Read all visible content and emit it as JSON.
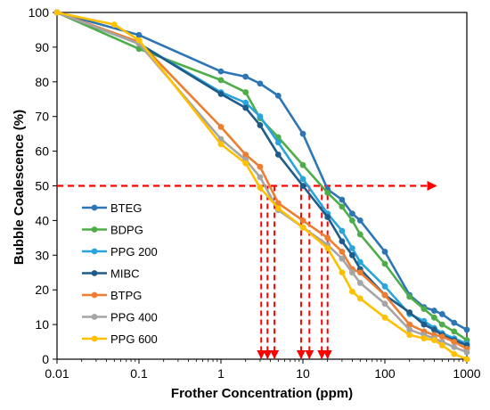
{
  "chart_data": {
    "type": "line",
    "xlabel": "Frother Concentration (ppm)",
    "ylabel": "Bubble Coalescence (%)",
    "x_scale": "log",
    "xlim": [
      0.01,
      1000
    ],
    "ylim": [
      0,
      100
    ],
    "x_ticks": [
      "0.01",
      "0.1",
      "1",
      "10",
      "100",
      "1000"
    ],
    "y_ticks": [
      "0",
      "10",
      "20",
      "30",
      "40",
      "50",
      "60",
      "70",
      "80",
      "90",
      "100"
    ],
    "grid": false,
    "legend_position": "left-center",
    "series": [
      {
        "name": "BTEG",
        "color": "#2e75b6",
        "points": [
          [
            0.01,
            100
          ],
          [
            0.1,
            93.5
          ],
          [
            1,
            83
          ],
          [
            2,
            81.5
          ],
          [
            3,
            79.5
          ],
          [
            5,
            76
          ],
          [
            10,
            65
          ],
          [
            20,
            49
          ],
          [
            30,
            46
          ],
          [
            40,
            42
          ],
          [
            50,
            40
          ],
          [
            100,
            31
          ],
          [
            200,
            18.5
          ],
          [
            300,
            15
          ],
          [
            400,
            14
          ],
          [
            500,
            13
          ],
          [
            700,
            10.5
          ],
          [
            1000,
            8.5
          ]
        ]
      },
      {
        "name": "BDPG",
        "color": "#4ead48",
        "points": [
          [
            0.01,
            100
          ],
          [
            0.1,
            89.5
          ],
          [
            1,
            80.5
          ],
          [
            2,
            77
          ],
          [
            3,
            69.5
          ],
          [
            5,
            64
          ],
          [
            10,
            56
          ],
          [
            20,
            48
          ],
          [
            30,
            44
          ],
          [
            40,
            40
          ],
          [
            50,
            36
          ],
          [
            100,
            27.5
          ],
          [
            200,
            18
          ],
          [
            300,
            14.5
          ],
          [
            400,
            12
          ],
          [
            500,
            10
          ],
          [
            700,
            8
          ],
          [
            1000,
            5.5
          ]
        ]
      },
      {
        "name": "PPG 200",
        "color": "#29a4dd",
        "points": [
          [
            0.01,
            100
          ],
          [
            0.1,
            91
          ],
          [
            1,
            77
          ],
          [
            2,
            74
          ],
          [
            3,
            70
          ],
          [
            5,
            62.5
          ],
          [
            10,
            52
          ],
          [
            20,
            42
          ],
          [
            30,
            37
          ],
          [
            40,
            32
          ],
          [
            50,
            28
          ],
          [
            100,
            21
          ],
          [
            200,
            13
          ],
          [
            300,
            11
          ],
          [
            400,
            9
          ],
          [
            500,
            7.5
          ],
          [
            700,
            6
          ],
          [
            1000,
            4.5
          ]
        ]
      },
      {
        "name": "MIBC",
        "color": "#1f5b89",
        "points": [
          [
            0.01,
            100
          ],
          [
            0.1,
            91
          ],
          [
            1,
            76.5
          ],
          [
            2,
            72.5
          ],
          [
            3,
            67.5
          ],
          [
            5,
            59
          ],
          [
            10,
            50
          ],
          [
            20,
            41
          ],
          [
            30,
            34
          ],
          [
            40,
            30
          ],
          [
            50,
            26
          ],
          [
            100,
            18.5
          ],
          [
            200,
            13.5
          ],
          [
            300,
            10
          ],
          [
            400,
            8.5
          ],
          [
            500,
            7
          ],
          [
            700,
            5.5
          ],
          [
            1000,
            4
          ]
        ]
      },
      {
        "name": "BTPG",
        "color": "#ed7d31",
        "points": [
          [
            0.01,
            100
          ],
          [
            0.1,
            91.5
          ],
          [
            1,
            67
          ],
          [
            2,
            59
          ],
          [
            3,
            55.5
          ],
          [
            5,
            45
          ],
          [
            10,
            40
          ],
          [
            20,
            35
          ],
          [
            30,
            31
          ],
          [
            40,
            26
          ],
          [
            50,
            25
          ],
          [
            100,
            18.5
          ],
          [
            200,
            10
          ],
          [
            300,
            8
          ],
          [
            400,
            7
          ],
          [
            500,
            6.5
          ],
          [
            700,
            5
          ],
          [
            1000,
            3
          ]
        ]
      },
      {
        "name": "PPG 400",
        "color": "#a5a5a5",
        "points": [
          [
            0.01,
            100
          ],
          [
            0.1,
            91
          ],
          [
            1,
            63.5
          ],
          [
            2,
            57.5
          ],
          [
            3,
            52.5
          ],
          [
            5,
            43
          ],
          [
            10,
            38
          ],
          [
            20,
            33
          ],
          [
            30,
            29
          ],
          [
            40,
            25
          ],
          [
            50,
            22
          ],
          [
            100,
            16
          ],
          [
            200,
            8.5
          ],
          [
            300,
            7
          ],
          [
            400,
            6
          ],
          [
            500,
            5
          ],
          [
            700,
            3.5
          ],
          [
            1000,
            2
          ]
        ]
      },
      {
        "name": "PPG 600",
        "color": "#ffc000",
        "points": [
          [
            0.01,
            100
          ],
          [
            0.05,
            96.5
          ],
          [
            0.1,
            92
          ],
          [
            1,
            62
          ],
          [
            2,
            56.5
          ],
          [
            3,
            49.5
          ],
          [
            5,
            43.5
          ],
          [
            10,
            38
          ],
          [
            20,
            32
          ],
          [
            30,
            25
          ],
          [
            40,
            19.5
          ],
          [
            50,
            17.5
          ],
          [
            100,
            12
          ],
          [
            200,
            7
          ],
          [
            300,
            6
          ],
          [
            400,
            5.5
          ],
          [
            500,
            4
          ],
          [
            700,
            1.5
          ],
          [
            1000,
            0
          ]
        ]
      }
    ],
    "reference_lines": {
      "color": "#ff0000",
      "horizontal": {
        "y": 50,
        "x_from": 0.01,
        "x_to": 420
      },
      "vertical_x": [
        3.1,
        3.7,
        4.5,
        9.5,
        12,
        17,
        20
      ]
    }
  }
}
